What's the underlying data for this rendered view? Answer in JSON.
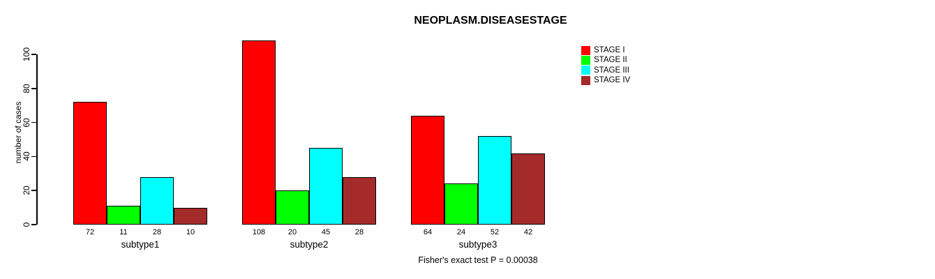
{
  "chart_data": {
    "type": "bar",
    "title": "NEOPLASM.DISEASESTAGE",
    "ylabel": "number of cases",
    "xlabel": "",
    "ylim": [
      0,
      100
    ],
    "yticks": [
      0,
      20,
      40,
      60,
      80,
      100
    ],
    "grid": false,
    "legend_position": "top-right",
    "categories": [
      "subtype1",
      "subtype2",
      "subtype3"
    ],
    "series": [
      {
        "name": "STAGE I",
        "color": "#FF0000",
        "values": [
          72,
          108,
          64
        ]
      },
      {
        "name": "STAGE II",
        "color": "#00FF00",
        "values": [
          11,
          20,
          24
        ]
      },
      {
        "name": "STAGE III",
        "color": "#00FFFF",
        "values": [
          28,
          45,
          52
        ]
      },
      {
        "name": "STAGE IV",
        "color": "#A52A2A",
        "values": [
          10,
          28,
          42
        ]
      }
    ],
    "bar_value_labels": [
      [
        72,
        11,
        28,
        10
      ],
      [
        108,
        20,
        45,
        28
      ],
      [
        64,
        24,
        52,
        42
      ]
    ],
    "annotation": "Fisher's exact test P = 0.00038"
  }
}
